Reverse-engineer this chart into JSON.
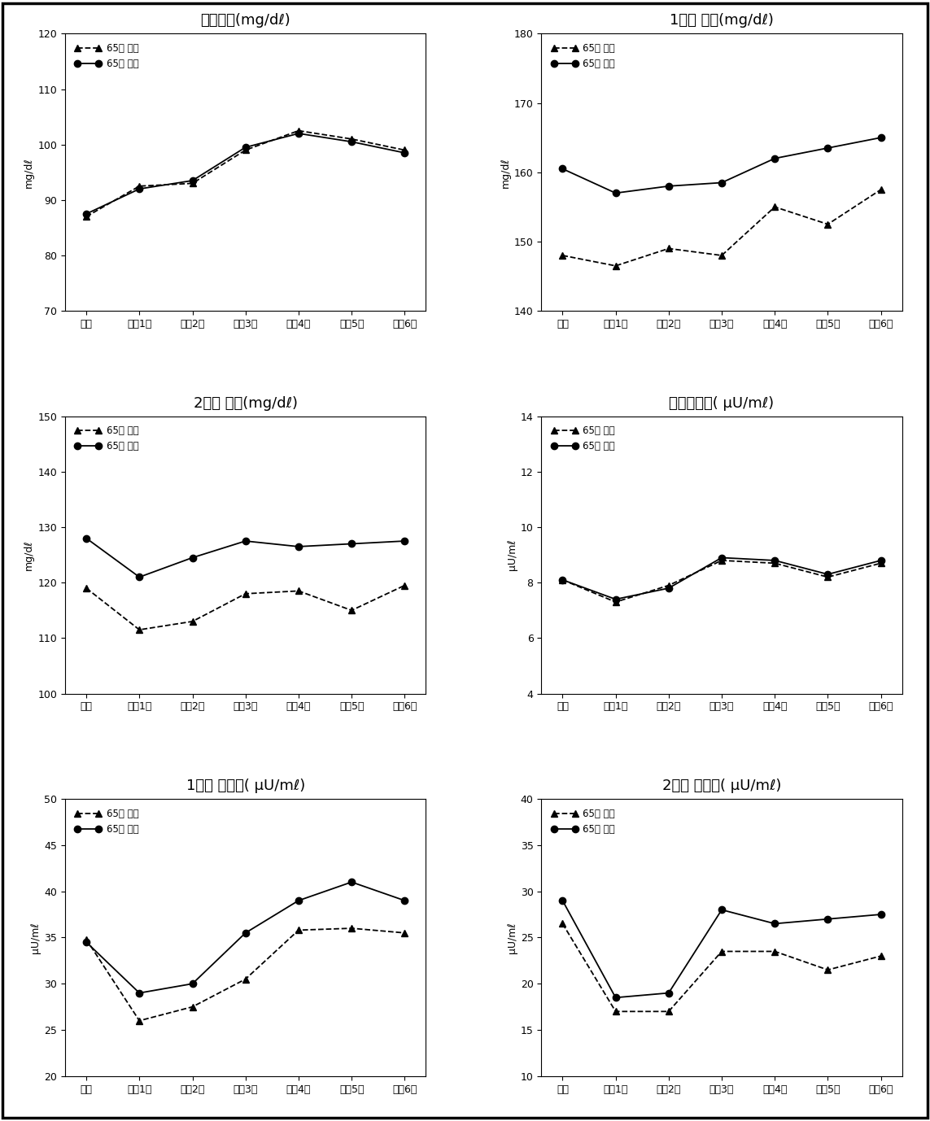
{
  "x_labels": [
    "기초",
    "추적1기",
    "추적2기",
    "추적3기",
    "추적4기",
    "추적5기",
    "추적6기"
  ],
  "charts": [
    {
      "title": "공복혈당(mg/dℓ)",
      "ylabel": "mg/dℓ",
      "ylim": [
        70,
        120
      ],
      "yticks": [
        70,
        80,
        90,
        100,
        110,
        120
      ],
      "line_under65": [
        87.0,
        92.5,
        93.0,
        99.0,
        102.5,
        101.0,
        99.0
      ],
      "line_over65": [
        87.5,
        92.0,
        93.5,
        99.5,
        102.0,
        100.5,
        98.5
      ]
    },
    {
      "title": "1시간 혈당(mg/dℓ)",
      "ylabel": "mg/dℓ",
      "ylim": [
        140,
        180
      ],
      "yticks": [
        140,
        150,
        160,
        170,
        180
      ],
      "line_under65": [
        148.0,
        146.5,
        149.0,
        148.0,
        155.0,
        152.5,
        157.5
      ],
      "line_over65": [
        160.5,
        157.0,
        158.0,
        158.5,
        162.0,
        163.5,
        165.0
      ]
    },
    {
      "title": "2시간 혈당(mg/dℓ)",
      "ylabel": "mg/dℓ",
      "ylim": [
        100,
        150
      ],
      "yticks": [
        100,
        110,
        120,
        130,
        140,
        150
      ],
      "line_under65": [
        119.0,
        111.5,
        113.0,
        118.0,
        118.5,
        115.0,
        119.5
      ],
      "line_over65": [
        128.0,
        121.0,
        124.5,
        127.5,
        126.5,
        127.0,
        127.5
      ]
    },
    {
      "title": "공복인슐런( μU/mℓ)",
      "ylabel": "μU/mℓ",
      "ylim": [
        4,
        14
      ],
      "yticks": [
        4,
        6,
        8,
        10,
        12,
        14
      ],
      "line_under65": [
        8.1,
        7.3,
        7.9,
        8.8,
        8.7,
        8.2,
        8.7
      ],
      "line_over65": [
        8.1,
        7.4,
        7.8,
        8.9,
        8.8,
        8.3,
        8.8
      ]
    },
    {
      "title": "1시간 인슐런( μU/mℓ)",
      "ylabel": "μU/mℓ",
      "ylim": [
        20,
        50
      ],
      "yticks": [
        20,
        25,
        30,
        35,
        40,
        45,
        50
      ],
      "line_under65": [
        34.8,
        26.0,
        27.5,
        30.5,
        35.8,
        36.0,
        35.5
      ],
      "line_over65": [
        34.5,
        29.0,
        30.0,
        35.5,
        39.0,
        41.0,
        39.0
      ]
    },
    {
      "title": "2시간 인슐런( μU/mℓ)",
      "ylabel": "μU/mℓ",
      "ylim": [
        10,
        40
      ],
      "yticks": [
        10,
        15,
        20,
        25,
        30,
        35,
        40
      ],
      "line_under65": [
        26.5,
        17.0,
        17.0,
        23.5,
        23.5,
        21.5,
        23.0
      ],
      "line_over65": [
        29.0,
        18.5,
        19.0,
        28.0,
        26.5,
        27.0,
        27.5
      ]
    }
  ],
  "legend_under65": "65세 미만",
  "legend_over65": "65세 이상",
  "line_color": "black",
  "background_color": "white",
  "title_fontsize": 13,
  "tick_fontsize": 9,
  "ylabel_fontsize": 9,
  "legend_fontsize": 8.5
}
